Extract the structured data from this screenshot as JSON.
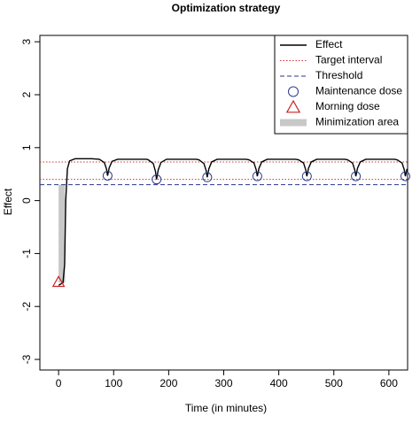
{
  "chart_data": {
    "type": "line",
    "title": "Optimization strategy",
    "x_label": "Time (in minutes)",
    "y_label": "Effect",
    "xlim": [
      -34,
      634
    ],
    "ylim": [
      -3.2,
      3.12
    ],
    "xticks": [
      0,
      100,
      200,
      300,
      400,
      500,
      600
    ],
    "yticks": [
      -3,
      -2,
      -1,
      0,
      1,
      2,
      3
    ],
    "legend": "top-right",
    "series": [
      {
        "name": "Effect",
        "color": "#000000",
        "style": "line",
        "x": [
          0,
          8,
          11,
          13,
          16,
          20,
          30,
          60,
          74,
          83,
          87,
          89,
          92,
          97,
          107,
          160,
          163,
          172,
          176,
          178,
          181,
          186,
          196,
          250,
          255,
          264,
          268,
          270,
          273,
          278,
          288,
          340,
          346,
          355,
          359,
          361,
          364,
          369,
          379,
          430,
          436,
          445,
          449,
          451,
          454,
          459,
          469,
          520,
          525,
          534,
          538,
          540,
          543,
          548,
          558,
          610,
          615,
          624,
          628,
          630,
          633
        ],
        "values": [
          -1.6,
          -1.55,
          -1.2,
          0.0,
          0.6,
          0.75,
          0.79,
          0.79,
          0.78,
          0.72,
          0.6,
          0.47,
          0.62,
          0.74,
          0.78,
          0.78,
          0.77,
          0.7,
          0.55,
          0.4,
          0.58,
          0.72,
          0.78,
          0.78,
          0.77,
          0.7,
          0.57,
          0.44,
          0.6,
          0.73,
          0.78,
          0.78,
          0.77,
          0.71,
          0.58,
          0.46,
          0.61,
          0.73,
          0.78,
          0.78,
          0.77,
          0.71,
          0.58,
          0.46,
          0.61,
          0.73,
          0.78,
          0.78,
          0.77,
          0.71,
          0.58,
          0.46,
          0.61,
          0.73,
          0.78,
          0.78,
          0.77,
          0.71,
          0.58,
          0.46,
          0.6
        ]
      },
      {
        "name": "Target interval",
        "color": "#cd3333",
        "style": "dotted",
        "values": [
          0.4,
          0.73
        ]
      },
      {
        "name": "Threshold",
        "color": "#27348b",
        "style": "dashed",
        "values": [
          0.3
        ]
      },
      {
        "name": "Maintenance dose",
        "color": "#2b3a8c",
        "style": "circle",
        "x": [
          89,
          178,
          270,
          361,
          451,
          540,
          630
        ],
        "values": [
          0.47,
          0.4,
          0.44,
          0.46,
          0.46,
          0.46,
          0.46
        ]
      },
      {
        "name": "Morning dose",
        "color": "#cc2222",
        "style": "triangle",
        "x": [
          0
        ],
        "values": [
          -1.55
        ]
      },
      {
        "name": "Minimization area",
        "color": "#c8c8c8",
        "style": "area",
        "x": [
          0,
          12
        ],
        "values": [
          -1.55,
          0.3
        ]
      }
    ]
  }
}
